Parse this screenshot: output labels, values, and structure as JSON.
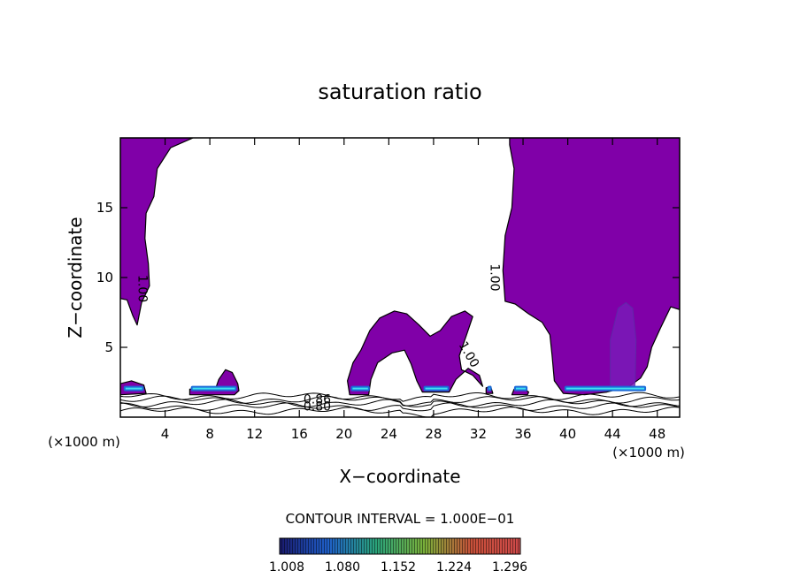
{
  "chart_data": {
    "type": "contour",
    "title": "saturation ratio",
    "xlabel": "X−coordinate",
    "ylabel": "Z−coordinate",
    "x_unit_left": "(×1000 m)",
    "x_unit_right": "(×1000 m)",
    "xlim": [
      0,
      50
    ],
    "ylim": [
      0,
      20
    ],
    "x_ticks": [
      4,
      8,
      12,
      16,
      20,
      24,
      28,
      32,
      36,
      40,
      44,
      48
    ],
    "y_ticks": [
      5,
      10,
      15
    ],
    "contour_interval_text": "CONTOUR INTERVAL = 1.000E−01",
    "contour_labels": [
      {
        "text": "1.00",
        "x": 2.0,
        "z": 9.2,
        "rotate": 90
      },
      {
        "text": "1.00",
        "x": 33.5,
        "z": 10.0,
        "rotate": 90
      },
      {
        "text": "1.00",
        "x": 31.2,
        "z": 4.5,
        "rotate": 60
      },
      {
        "text": "0.80",
        "x": 17.6,
        "z": 0.8,
        "rotate": 0
      },
      {
        "text": "0.86",
        "x": 17.6,
        "z": 1.3,
        "rotate": 0
      }
    ],
    "colorbar": {
      "tick_labels": [
        "1.008",
        "1.080",
        "1.152",
        "1.224",
        "1.296"
      ],
      "colors": [
        "#1a1a6e",
        "#1f5fc9",
        "#2aa37a",
        "#7ab03a",
        "#c8503a",
        "#d04a4a"
      ]
    },
    "fill_color": "#8000a8",
    "regions": [
      {
        "name": "upper-left cloud",
        "points": [
          [
            0,
            20
          ],
          [
            6.5,
            20
          ],
          [
            4.5,
            19.3
          ],
          [
            3.3,
            17.8
          ],
          [
            3.0,
            15.8
          ],
          [
            2.3,
            14.6
          ],
          [
            2.2,
            12.8
          ],
          [
            2.5,
            11.0
          ],
          [
            2.6,
            9.4
          ],
          [
            1.9,
            8.2
          ],
          [
            1.5,
            6.6
          ],
          [
            1.1,
            7.3
          ],
          [
            0.6,
            8.4
          ],
          [
            0,
            8.5
          ]
        ]
      },
      {
        "name": "right cloud",
        "points": [
          [
            34.8,
            20
          ],
          [
            50,
            20
          ],
          [
            50,
            7.7
          ],
          [
            49.2,
            7.9
          ],
          [
            48.3,
            6.4
          ],
          [
            47.5,
            5.0
          ],
          [
            47.1,
            3.6
          ],
          [
            46.5,
            2.8
          ],
          [
            45.5,
            2.2
          ],
          [
            43.5,
            1.8
          ],
          [
            41.5,
            1.6
          ],
          [
            39.6,
            1.7
          ],
          [
            38.8,
            2.6
          ],
          [
            38.6,
            4.4
          ],
          [
            38.4,
            5.9
          ],
          [
            37.7,
            6.8
          ],
          [
            36.5,
            7.4
          ],
          [
            35.3,
            8.1
          ],
          [
            34.4,
            8.3
          ],
          [
            34.2,
            10.5
          ],
          [
            34.4,
            13.0
          ],
          [
            35.0,
            15.0
          ],
          [
            35.2,
            17.8
          ],
          [
            34.8,
            19.5
          ]
        ]
      },
      {
        "name": "middle cloud",
        "points": [
          [
            20.5,
            1.6
          ],
          [
            20.3,
            2.6
          ],
          [
            20.8,
            3.9
          ],
          [
            21.5,
            4.8
          ],
          [
            22.3,
            6.2
          ],
          [
            23.2,
            7.1
          ],
          [
            24.5,
            7.6
          ],
          [
            25.6,
            7.4
          ],
          [
            26.7,
            6.6
          ],
          [
            27.7,
            5.8
          ],
          [
            28.6,
            6.2
          ],
          [
            29.6,
            7.2
          ],
          [
            30.8,
            7.6
          ],
          [
            31.5,
            7.2
          ],
          [
            31.0,
            6.0
          ],
          [
            30.3,
            4.4
          ],
          [
            30.5,
            3.4
          ],
          [
            31.5,
            3.0
          ],
          [
            32.4,
            2.2
          ],
          [
            32.1,
            3.0
          ],
          [
            31.1,
            3.5
          ],
          [
            30.0,
            2.7
          ],
          [
            29.4,
            1.8
          ],
          [
            27.0,
            1.8
          ],
          [
            26.5,
            2.6
          ],
          [
            26.0,
            3.8
          ],
          [
            25.4,
            4.8
          ],
          [
            24.3,
            4.6
          ],
          [
            23.0,
            3.9
          ],
          [
            22.4,
            2.7
          ],
          [
            22.2,
            1.6
          ]
        ]
      },
      {
        "name": "cloud near x=9",
        "points": [
          [
            6.2,
            1.6
          ],
          [
            6.2,
            2.0
          ],
          [
            7.5,
            2.1
          ],
          [
            8.5,
            2.0
          ],
          [
            8.8,
            2.7
          ],
          [
            9.4,
            3.4
          ],
          [
            10.0,
            3.2
          ],
          [
            10.5,
            2.4
          ],
          [
            10.6,
            1.9
          ],
          [
            10.2,
            1.6
          ]
        ]
      },
      {
        "name": "cloud near x=1",
        "points": [
          [
            0,
            1.6
          ],
          [
            0,
            2.4
          ],
          [
            1.0,
            2.6
          ],
          [
            2.1,
            2.3
          ],
          [
            2.3,
            1.7
          ]
        ]
      },
      {
        "name": "cloud near x=33",
        "points": [
          [
            32.7,
            1.7
          ],
          [
            32.7,
            2.1
          ],
          [
            33.1,
            2.2
          ],
          [
            33.3,
            1.7
          ]
        ]
      },
      {
        "name": "cloud near x=35.8",
        "points": [
          [
            35.0,
            1.6
          ],
          [
            35.2,
            2.0
          ],
          [
            36.0,
            2.1
          ],
          [
            36.5,
            1.8
          ],
          [
            36.4,
            1.6
          ]
        ]
      }
    ],
    "inner_contour": {
      "points": [
        [
          43.8,
          2.0
        ],
        [
          43.8,
          5.5
        ],
        [
          44.5,
          7.8
        ],
        [
          45.2,
          8.2
        ],
        [
          45.8,
          7.8
        ],
        [
          46.1,
          5.5
        ],
        [
          46.0,
          2.0
        ]
      ]
    },
    "blue_band_segments": [
      [
        0.3,
        2.1
      ],
      [
        6.3,
        10.4
      ],
      [
        20.6,
        22.3
      ],
      [
        27.1,
        29.4
      ],
      [
        32.8,
        33.2
      ],
      [
        35.2,
        36.4
      ],
      [
        39.7,
        47.0
      ]
    ]
  }
}
